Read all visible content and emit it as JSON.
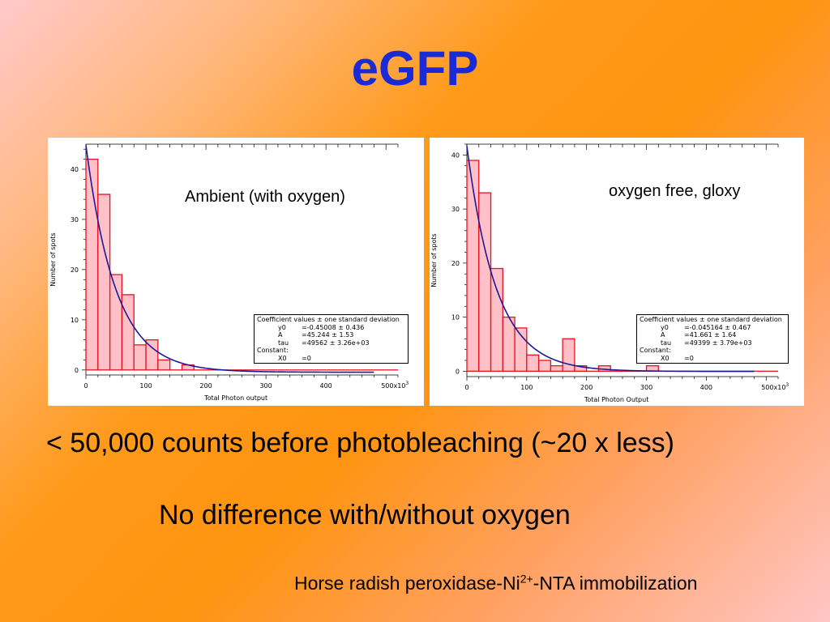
{
  "slide": {
    "title": "eGFP",
    "bullet_1": "< 50,000 counts before photobleaching (~20 x less)",
    "bullet_2": "No difference with/without oxygen",
    "footnote": {
      "pre": "Horse radish peroxidase-Ni",
      "sup": "2+",
      "post": "-NTA immobilization"
    }
  },
  "colors": {
    "title": "#1a2bd6",
    "bar_fill": "#ffc0c8",
    "bar_edge": "#e8121e",
    "fit_line": "#1a1a9a"
  },
  "chart_data": [
    {
      "type": "bar",
      "panel_label": "Ambient (with oxygen)",
      "xlabel": "Total Photon output",
      "ylabel": "Number of spots",
      "x_tick_labels": [
        "0",
        "100",
        "200",
        "300",
        "400",
        "500x10"
      ],
      "x_tick_values": [
        0,
        100,
        200,
        300,
        400,
        500
      ],
      "x_exponent": "3",
      "y_ticks": [
        0,
        10,
        20,
        30,
        40
      ],
      "xlim": [
        0,
        520
      ],
      "ylim": [
        -1,
        45
      ],
      "bin_width": 20,
      "bin_starts": [
        0,
        20,
        40,
        60,
        80,
        100,
        120,
        140,
        160,
        180,
        200,
        220,
        240,
        260,
        280,
        300,
        320,
        340,
        360,
        380,
        400,
        420,
        440,
        460,
        480,
        500
      ],
      "values": [
        42,
        35,
        19,
        15,
        5,
        6,
        2,
        0,
        1,
        0,
        0,
        0,
        0,
        0,
        0,
        0,
        0,
        0,
        0,
        0,
        0,
        0,
        0,
        0,
        0,
        0
      ],
      "fit": {
        "type": "exponential",
        "y0": -0.45008,
        "A": 45.244,
        "tau": 49.562,
        "x0": 0
      },
      "coefficients": {
        "header": "Coefficient values ± one standard deviation",
        "rows": [
          {
            "name": "y0",
            "value": "=-0.45008 ± 0.436"
          },
          {
            "name": "A",
            "value": "=45.244 ± 1.53"
          },
          {
            "name": "tau",
            "value": "=49562 ± 3.26e+03"
          }
        ],
        "constant_label": "Constant:",
        "constant": {
          "name": "X0",
          "value": "=0"
        }
      }
    },
    {
      "type": "bar",
      "panel_label": "oxygen free, gloxy",
      "xlabel": "Total Photon Output",
      "ylabel": "Number of spots",
      "x_tick_labels": [
        "0",
        "100",
        "200",
        "300",
        "400",
        "500x10"
      ],
      "x_tick_values": [
        0,
        100,
        200,
        300,
        400,
        500
      ],
      "x_exponent": "3",
      "y_ticks": [
        0,
        10,
        20,
        30,
        40
      ],
      "xlim": [
        0,
        520
      ],
      "ylim": [
        -1,
        42
      ],
      "bin_width": 20,
      "bin_starts": [
        0,
        20,
        40,
        60,
        80,
        100,
        120,
        140,
        160,
        180,
        200,
        220,
        240,
        260,
        280,
        300,
        320,
        340,
        360,
        380,
        400,
        420,
        440,
        460,
        480,
        500
      ],
      "values": [
        39,
        33,
        19,
        10,
        8,
        3,
        2,
        1,
        6,
        1,
        0,
        1,
        0,
        0,
        0,
        1,
        0,
        0,
        0,
        0,
        0,
        0,
        0,
        0,
        0,
        0
      ],
      "fit": {
        "type": "exponential",
        "y0": -0.045164,
        "A": 41.661,
        "tau": 49.399,
        "x0": 0
      },
      "coefficients": {
        "header": "Coefficient values ± one standard deviation",
        "rows": [
          {
            "name": "y0",
            "value": "=-0.045164 ± 0.467"
          },
          {
            "name": "A",
            "value": "=41.661 ± 1.64"
          },
          {
            "name": "tau",
            "value": "=49399 ± 3.79e+03"
          }
        ],
        "constant_label": "Constant:",
        "constant": {
          "name": "X0",
          "value": "=0"
        }
      }
    }
  ]
}
